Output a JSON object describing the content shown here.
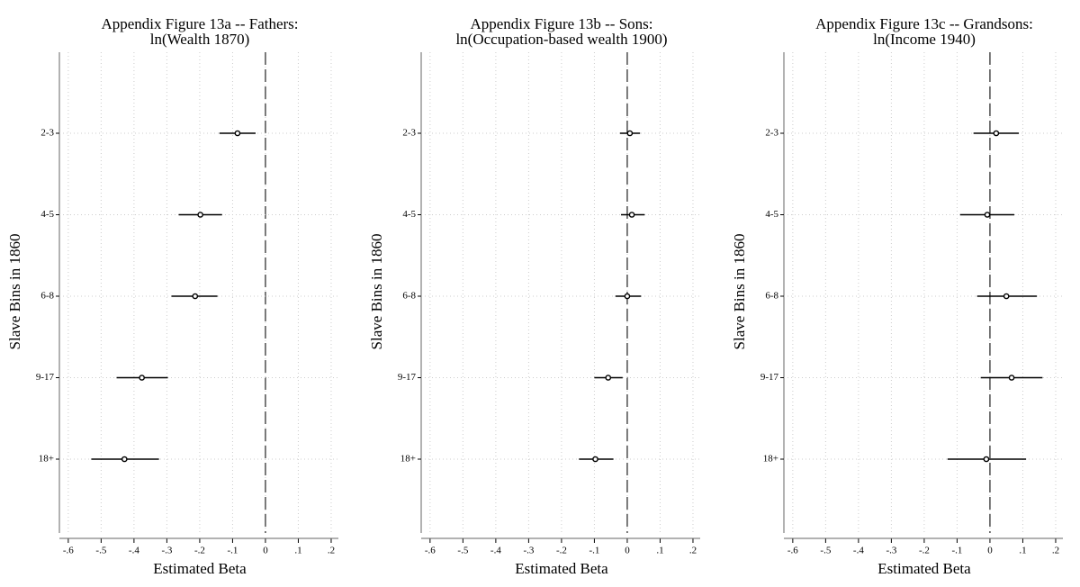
{
  "chart_data": [
    {
      "type": "errorbar",
      "title": [
        "Appendix Figure 13a -- Fathers:",
        "ln(Wealth 1870)"
      ],
      "xlabel": "Estimated Beta",
      "ylabel": "Slave Bins in 1860",
      "categories": [
        "2-3",
        "4-5",
        "6-8",
        "9-17",
        "18+"
      ],
      "values": [
        -0.085,
        -0.198,
        -0.214,
        -0.376,
        -0.429
      ],
      "lower": [
        -0.14,
        -0.264,
        -0.286,
        -0.453,
        -0.53
      ],
      "upper": [
        -0.03,
        -0.132,
        -0.146,
        -0.297,
        -0.324
      ],
      "color": "#000000",
      "xline": 0,
      "grid": true,
      "xlim": [
        -0.627,
        0.222
      ],
      "xticks": [
        {
          "value": -0.6,
          "label": "-.6"
        },
        {
          "value": -0.5,
          "label": "-.5"
        },
        {
          "value": -0.4,
          "label": "-.4"
        },
        {
          "value": -0.3,
          "label": "-.3"
        },
        {
          "value": -0.2,
          "label": "-.2"
        },
        {
          "value": -0.1,
          "label": "-.1"
        },
        0,
        {
          "value": 0.1,
          "label": ".1"
        },
        {
          "value": 0.2,
          "label": ".2"
        }
      ]
    },
    {
      "type": "errorbar",
      "title": [
        "Appendix Figure 13b -- Sons:",
        "ln(Occupation-based wealth 1900)"
      ],
      "xlabel": "Estimated Beta",
      "ylabel": "Slave Bins in 1860",
      "categories": [
        "2-3",
        "4-5",
        "6-8",
        "9-17",
        "18+"
      ],
      "values": [
        0.008,
        0.014,
        0.0,
        -0.058,
        -0.097
      ],
      "lower": [
        -0.022,
        -0.019,
        -0.036,
        -0.1,
        -0.147
      ],
      "upper": [
        0.039,
        0.053,
        0.042,
        -0.014,
        -0.042
      ],
      "color": "#000000",
      "xline": 0,
      "grid": true,
      "xlim": [
        -0.627,
        0.222
      ],
      "xticks": [
        {
          "value": -0.6,
          "label": "-.6"
        },
        {
          "value": -0.5,
          "label": "-.5"
        },
        {
          "value": -0.4,
          "label": "-.4"
        },
        {
          "value": -0.3,
          "label": "-.3"
        },
        {
          "value": -0.2,
          "label": "-.2"
        },
        {
          "value": -0.1,
          "label": "-.1"
        },
        0,
        {
          "value": 0.1,
          "label": ".1"
        },
        {
          "value": 0.2,
          "label": ".2"
        }
      ]
    },
    {
      "type": "errorbar",
      "title": [
        "Appendix Figure 13c -- Grandsons:",
        "ln(Income 1940)"
      ],
      "xlabel": "Estimated Beta",
      "ylabel": "Slave Bins in 1860",
      "categories": [
        "2-3",
        "4-5",
        "6-8",
        "9-17",
        "18+"
      ],
      "values": [
        0.019,
        -0.008,
        0.05,
        0.066,
        -0.011
      ],
      "lower": [
        -0.05,
        -0.091,
        -0.039,
        -0.028,
        -0.129
      ],
      "upper": [
        0.088,
        0.074,
        0.143,
        0.16,
        0.11
      ],
      "color": "#000000",
      "xline": 0,
      "grid": true,
      "xlim": [
        -0.627,
        0.222
      ],
      "xticks": [
        {
          "value": -0.6,
          "label": "-.6"
        },
        {
          "value": -0.5,
          "label": "-.5"
        },
        {
          "value": -0.4,
          "label": "-.4"
        },
        {
          "value": -0.3,
          "label": "-.3"
        },
        {
          "value": -0.2,
          "label": "-.2"
        },
        {
          "value": -0.1,
          "label": "-.1"
        },
        0,
        {
          "value": 0.1,
          "label": ".1"
        },
        {
          "value": 0.2,
          "label": ".2"
        }
      ]
    }
  ]
}
